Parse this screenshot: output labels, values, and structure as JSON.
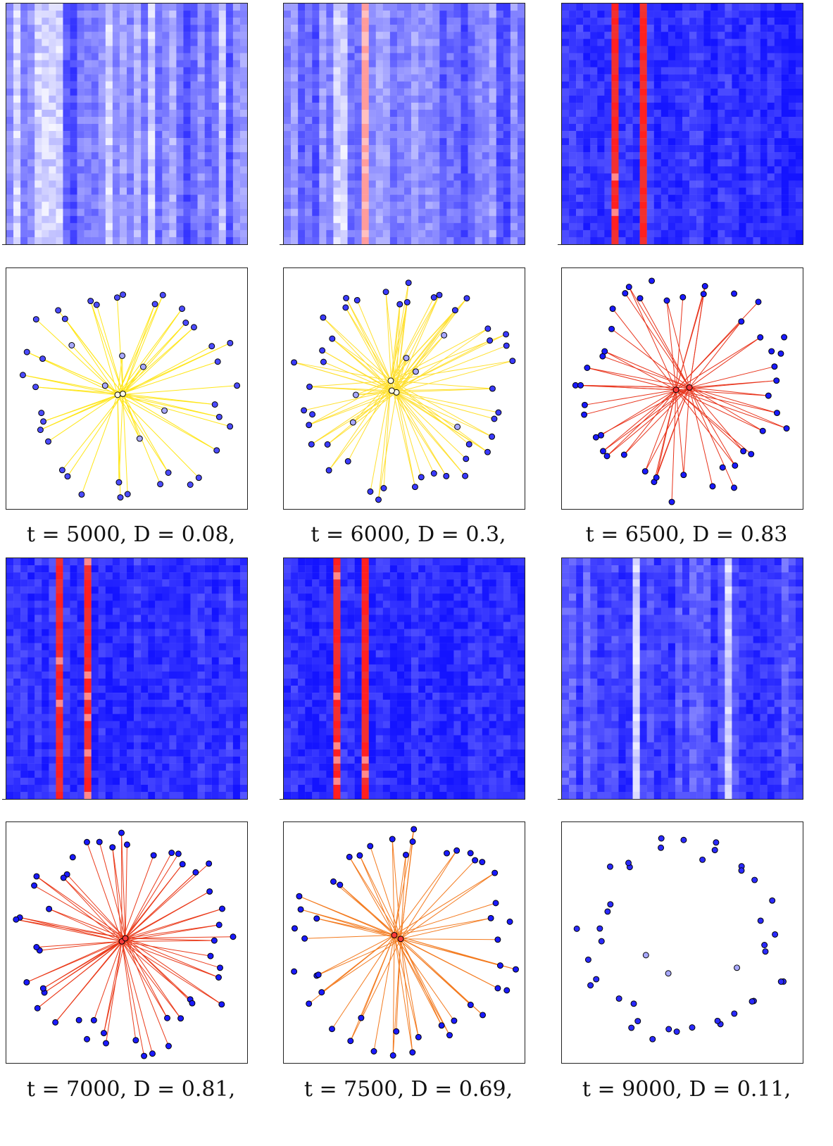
{
  "snapshots": [
    {
      "t": "5000",
      "D": "0.08",
      "caption": "t = 5000, D = 0.08,",
      "red_columns": [],
      "blue_level": 0.55,
      "white_columns": [
        1,
        4,
        5,
        6,
        7,
        14,
        20,
        30
      ],
      "hub_count": 2,
      "node_count": 38,
      "edge_color": "#ffe619",
      "node_fill": "#4b4bff"
    },
    {
      "t": "6000",
      "D": "0.3",
      "caption": "t = 6000, D = 0.3,",
      "red_columns": [],
      "blue_level": 0.5,
      "white_columns": [
        7,
        8,
        11
      ],
      "pink_column": 11,
      "hub_count": 3,
      "node_count": 44,
      "edge_color": "#ffe030",
      "node_fill": "#3a3aff"
    },
    {
      "t": "6500",
      "D": "0.83",
      "caption": "t = 6500, D = 0.83",
      "red_columns": [
        7,
        11
      ],
      "blue_level": 0.15,
      "white_columns": [],
      "hub_count": 2,
      "node_count": 46,
      "edge_color": "#e8331b",
      "node_fill": "#1a1aff"
    },
    {
      "t": "7000",
      "D": "0.81",
      "caption": "t = 7000, D = 0.81,",
      "red_columns": [
        7,
        11
      ],
      "blue_level": 0.15,
      "white_columns": [],
      "hub_count": 2,
      "node_count": 48,
      "edge_color": "#ea3a1a",
      "node_fill": "#1a1aff"
    },
    {
      "t": "7500",
      "D": "0.69",
      "caption": "t = 7500, D = 0.69,",
      "red_columns": [
        7,
        11
      ],
      "blue_level": 0.12,
      "white_columns": [],
      "hub_count": 2,
      "node_count": 46,
      "edge_color": "#f37a1e",
      "node_fill": "#1a1aff"
    },
    {
      "t": "9000",
      "D": "0.11",
      "caption": "t = 9000, D = 0.11,",
      "red_columns": [],
      "blue_level": 0.3,
      "white_columns": [
        10,
        23
      ],
      "hub_count": 0,
      "node_count": 40,
      "edge_color": "none",
      "node_fill": "#2a2aff"
    }
  ],
  "colors": {
    "node_stroke": "#000000",
    "frame": "#222222",
    "blue": "#1414ff",
    "red": "#ff2020"
  }
}
